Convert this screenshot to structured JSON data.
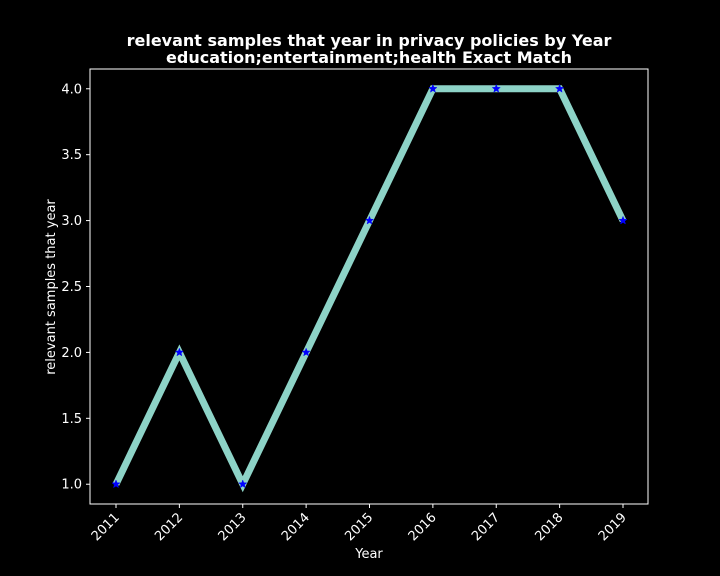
{
  "chart_data": {
    "type": "line",
    "title": "relevant samples that year in privacy policies by Year",
    "subtitle": "education;entertainment;health Exact Match",
    "xlabel": "Year",
    "ylabel": "relevant samples that year",
    "x": [
      "2011",
      "2012",
      "2013",
      "2014",
      "2015",
      "2016",
      "2017",
      "2018",
      "2019"
    ],
    "series": [
      {
        "values": [
          1,
          2,
          1,
          2,
          3,
          4,
          4,
          4,
          3
        ],
        "line_color": "#8dd3c7",
        "marker": "star",
        "marker_color": "#0000ff"
      }
    ],
    "ylim": [
      0.85,
      4.15
    ],
    "yticks": [
      "1.0",
      "1.5",
      "2.0",
      "2.5",
      "3.0",
      "3.5",
      "4.0"
    ],
    "xtick_rotation": 45,
    "grid": false,
    "legend": "none",
    "background": "#000000",
    "foreground": "#ffffff"
  }
}
